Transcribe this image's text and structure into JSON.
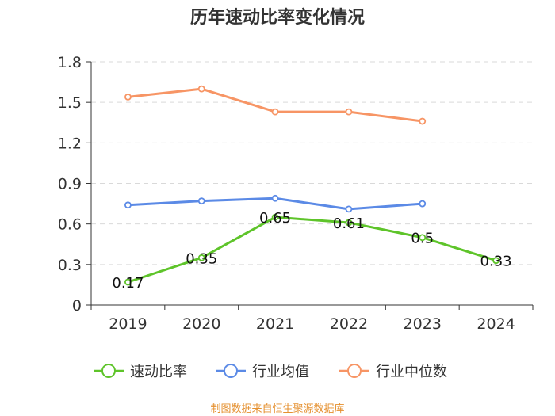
{
  "chart_data": {
    "type": "line",
    "title": "历年速动比率变化情况",
    "categories": [
      "2019",
      "2020",
      "2021",
      "2022",
      "2023",
      "2024"
    ],
    "ylim": [
      0,
      1.8
    ],
    "yticks": [
      "0",
      "0.3",
      "0.6",
      "0.9",
      "1.2",
      "1.5",
      "1.8"
    ],
    "grid": true,
    "legend_position": "bottom",
    "series": [
      {
        "name": "速动比率",
        "color": "#5ec42a",
        "values": [
          0.17,
          0.35,
          0.65,
          0.61,
          0.5,
          0.33
        ],
        "labels": [
          "0.17",
          "0.35",
          "0.65",
          "0.61",
          "0.5",
          "0.33"
        ]
      },
      {
        "name": "行业均值",
        "color": "#5b8ae6",
        "values": [
          0.74,
          0.77,
          0.79,
          0.71,
          0.75,
          null
        ]
      },
      {
        "name": "行业中位数",
        "color": "#f79565",
        "values": [
          1.54,
          1.6,
          1.43,
          1.43,
          1.36,
          null
        ]
      }
    ],
    "source": "制图数据来自恒生聚源数据库"
  }
}
